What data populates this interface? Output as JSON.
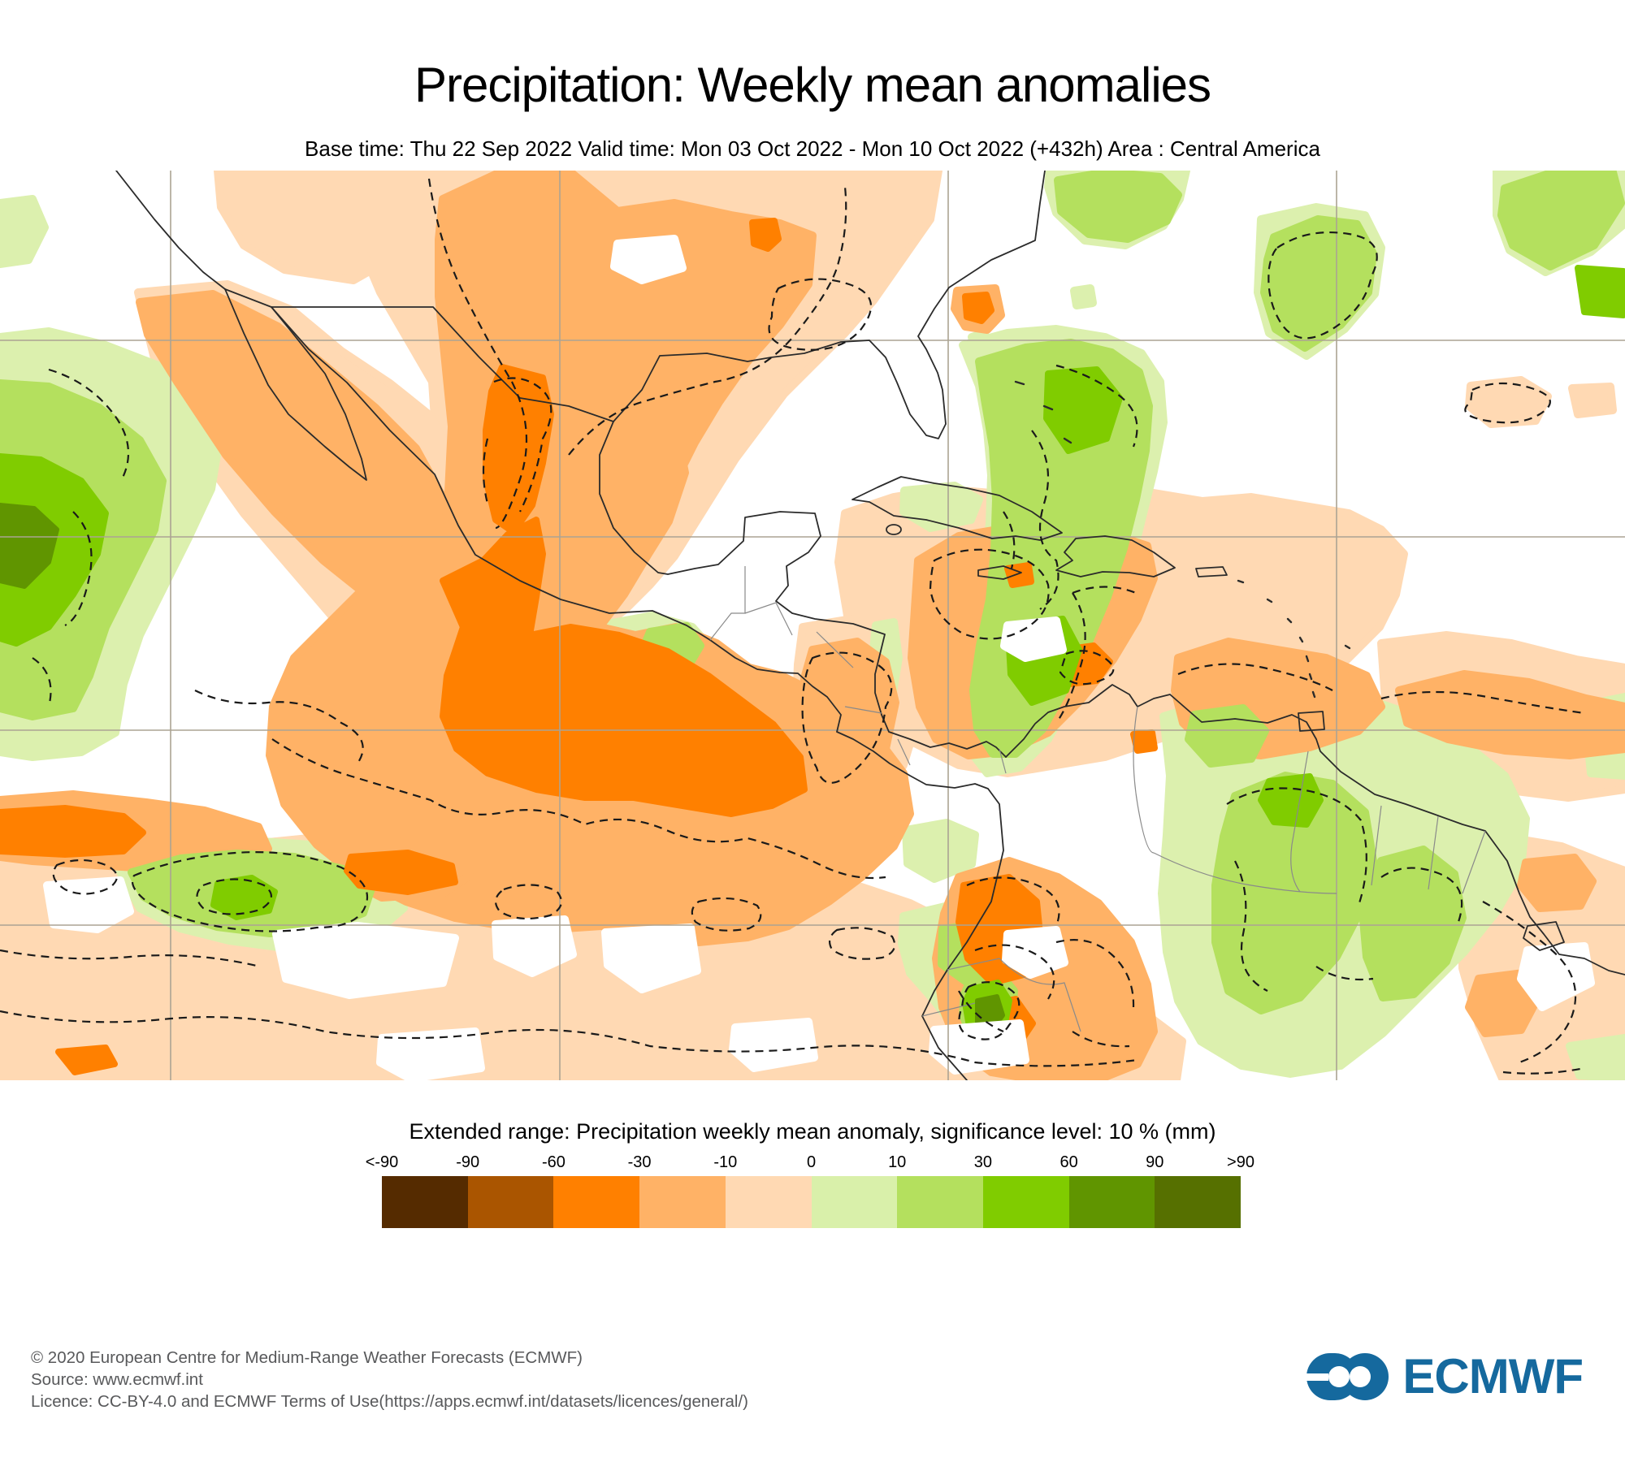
{
  "title": "Precipitation: Weekly mean anomalies",
  "subtitle": "Base time: Thu 22 Sep 2022 Valid time: Mon 03 Oct 2022 - Mon 10 Oct 2022 (+432h) Area : Central America",
  "legend": {
    "title": "Extended range: Precipitation weekly mean anomaly, significance level: 10 % (mm)",
    "tick_labels": [
      "<-90",
      "-90",
      "-60",
      "-30",
      "-10",
      "0",
      "10",
      "30",
      "60",
      "90",
      ">90"
    ],
    "colors": [
      "#552b00",
      "#aa5500",
      "#ff8000",
      "#ffb266",
      "#ffd9b3",
      "#d9f0aa",
      "#b4e05e",
      "#80cc00",
      "#609500",
      "#567000"
    ]
  },
  "map_colors": {
    "strong_negative": "#ff8000",
    "medium_negative": "#ffb266",
    "weak_negative": "#ffd9b3",
    "weak_positive": "#dcf0ae",
    "medium_positive": "#b4e05e",
    "strong_positive": "#80cc00",
    "very_strong_positive": "#609500"
  },
  "footer": {
    "lines": [
      "© 2020 European Centre for Medium-Range Weather Forecasts (ECMWF)",
      "Source: www.ecmwf.int",
      "Licence: CC-BY-4.0 and ECMWF Terms of Use(https://apps.ecmwf.int/datasets/licences/general/)"
    ]
  },
  "logo": {
    "text": "ECMWF",
    "color": "#15699e"
  }
}
